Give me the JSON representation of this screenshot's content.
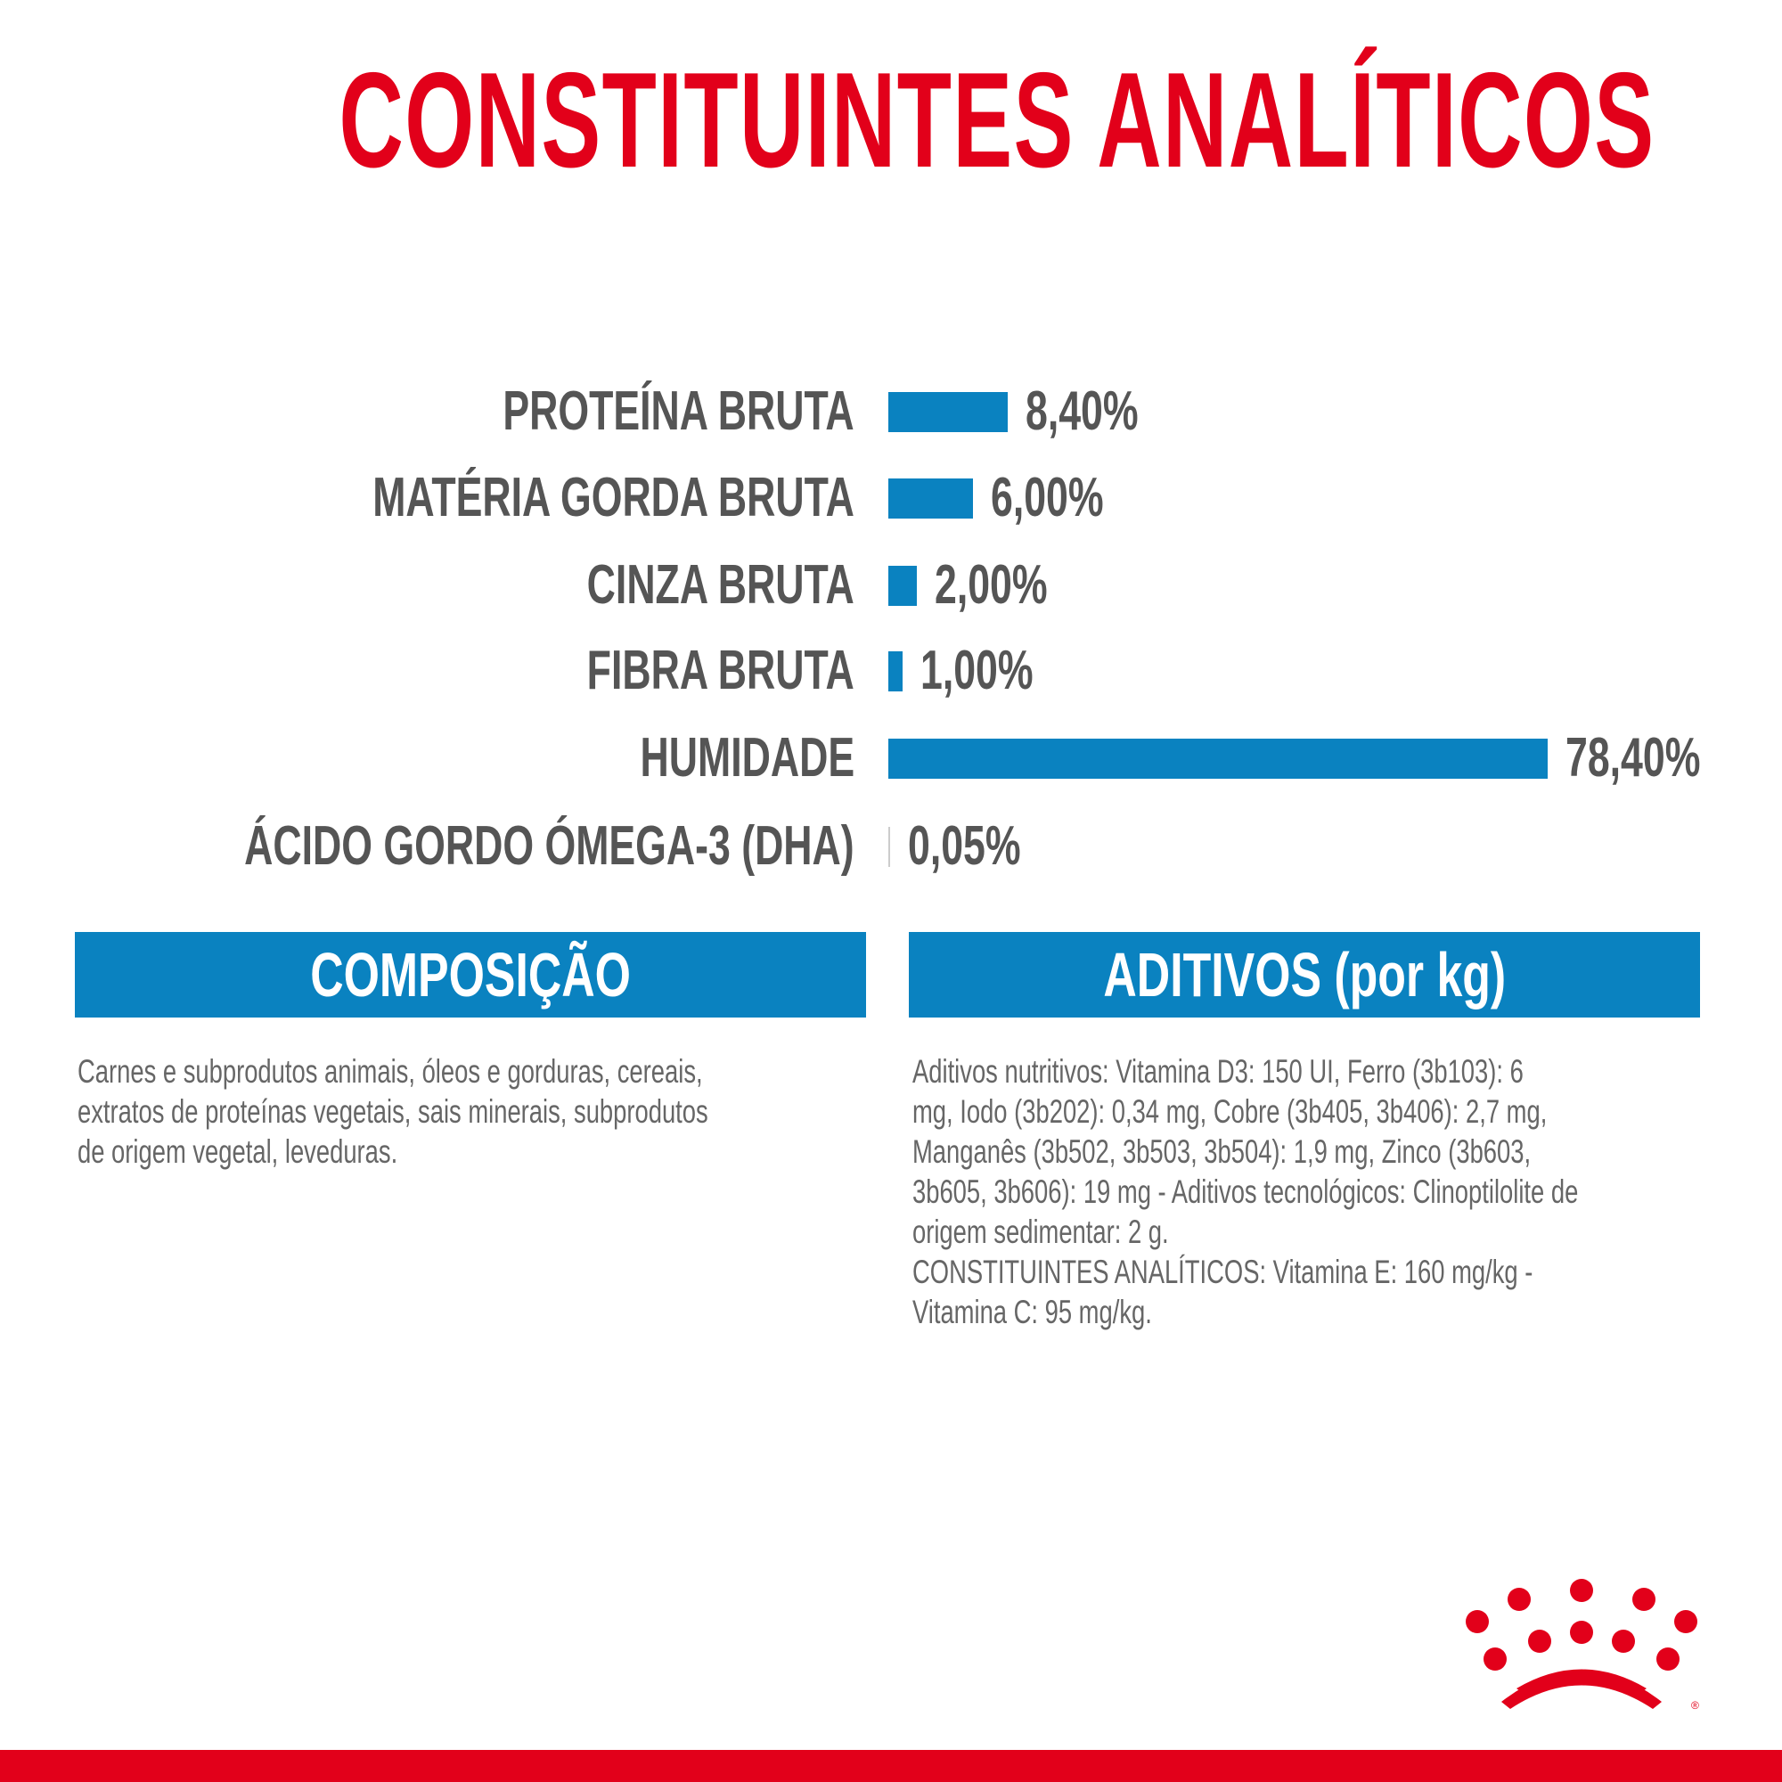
{
  "title": "CONSTITUINTES ANALÍTICOS",
  "chart_data": {
    "type": "bar",
    "orientation": "horizontal",
    "title": "CONSTITUINTES ANALÍTICOS",
    "unit": "%",
    "categories": [
      "PROTEÍNA BRUTA",
      "MATÉRIA GORDA BRUTA",
      "CINZA BRUTA",
      "FIBRA BRUTA",
      "HUMIDADE",
      "ÁCIDO GORDO ÓMEGA-3 (DHA)"
    ],
    "values": [
      8.4,
      6.0,
      2.0,
      1.0,
      78.4,
      0.05
    ],
    "value_labels": [
      "8,40%",
      "6,00%",
      "2,00%",
      "1,00%",
      "78,40%",
      "0,05%"
    ],
    "bar_color": "#0a82c0"
  },
  "composicao": {
    "heading": "COMPOSIÇÃO",
    "lines": [
      "Carnes e subprodutos animais, óleos e gorduras, cereais,",
      "extratos de proteínas vegetais, sais minerais, subprodutos",
      "de origem vegetal, leveduras."
    ]
  },
  "aditivos": {
    "heading": "ADITIVOS (por kg)",
    "lines": [
      "Aditivos nutritivos: Vitamina D3: 150 UI, Ferro (3b103): 6",
      "mg, Iodo (3b202): 0,34 mg, Cobre (3b405, 3b406): 2,7 mg,",
      "Manganês (3b502, 3b503, 3b504): 1,9 mg, Zinco (3b603,",
      "3b605, 3b606): 19 mg - Aditivos tecnológicos: Clinoptilolite de",
      "origem sedimentar: 2 g.",
      "CONSTITUINTES ANALÍTICOS: Vitamina E: 160 mg/kg -",
      "Vitamina C: 95 mg/kg."
    ]
  },
  "logo": {
    "brand": "Royal Canin",
    "color": "#e2001a"
  },
  "colors": {
    "title": "#e2001a",
    "accent": "#0a82c0",
    "text": "#555555"
  }
}
